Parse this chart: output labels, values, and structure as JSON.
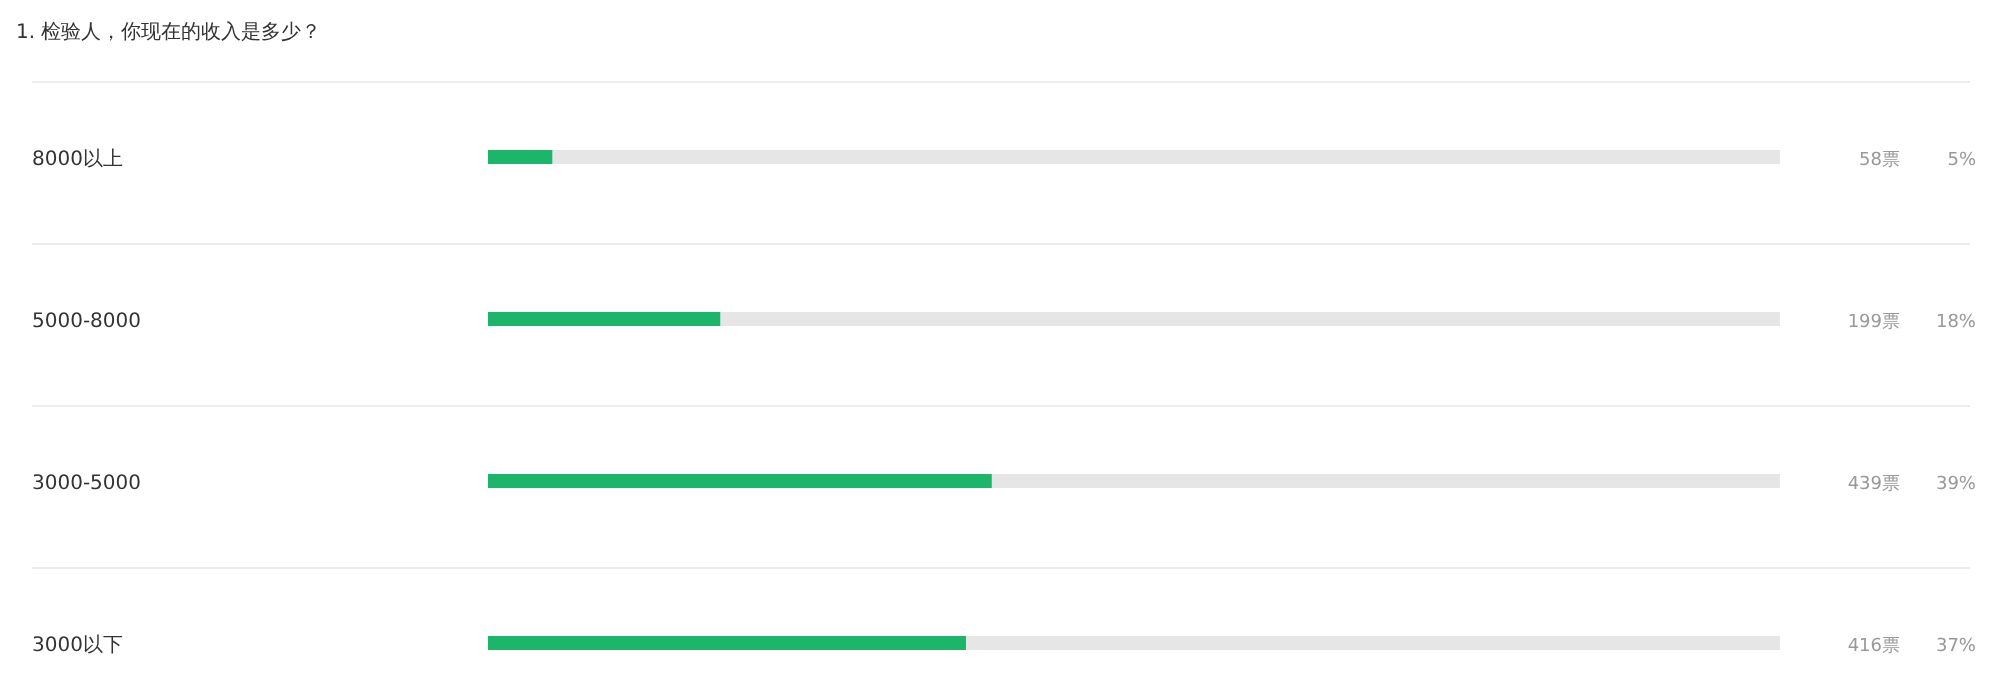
{
  "chart_data": {
    "type": "bar",
    "orientation": "horizontal",
    "stacked": true,
    "title": "1. 检验人，你现在的收入是多少？",
    "categories": [
      "8000以上",
      "5000-8000",
      "3000-5000",
      "3000以下"
    ],
    "series": [
      {
        "color": "#1cb66a",
        "values": [
          5,
          18,
          39,
          37
        ],
        "value_labels": [
          "5%",
          "18%",
          "39%",
          "37%"
        ]
      },
      {
        "color": "#e6e6e6",
        "values": [
          95,
          82,
          61,
          63
        ]
      }
    ],
    "xlim": [
      0,
      100
    ],
    "tick_labels": "y",
    "grid": "y",
    "annotations": [
      "58票",
      "199票",
      "439票",
      "416票"
    ]
  }
}
